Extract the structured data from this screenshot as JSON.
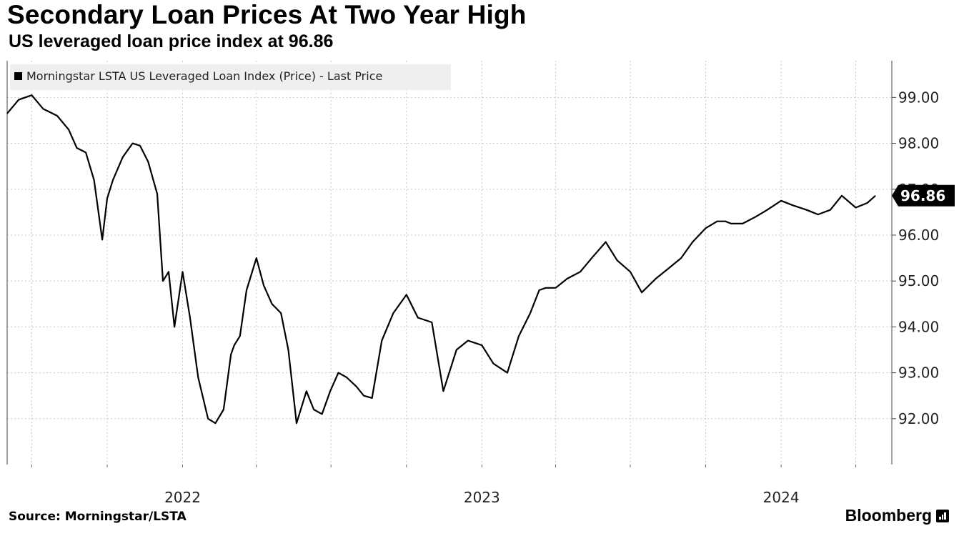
{
  "title": "Secondary Loan Prices At Two Year High",
  "subtitle": "US leveraged loan price index at 96.86",
  "source": "Source: Morningstar/LSTA",
  "brand": "Bloomberg",
  "chart_data": {
    "type": "line",
    "series": [
      {
        "name": "Morningstar LSTA US Leveraged Loan Index (Price) - Last Price",
        "color": "#000000",
        "x": [
          "2021-06-01",
          "2021-06-15",
          "2021-07-01",
          "2021-07-15",
          "2021-08-01",
          "2021-08-15",
          "2021-08-25",
          "2021-09-05",
          "2021-09-15",
          "2021-09-25",
          "2021-10-01",
          "2021-10-08",
          "2021-10-20",
          "2021-11-01",
          "2021-11-10",
          "2021-11-20",
          "2021-12-01",
          "2021-12-08",
          "2021-12-15",
          "2021-12-22",
          "2022-01-01",
          "2022-01-10",
          "2022-01-20",
          "2022-02-01",
          "2022-02-10",
          "2022-02-20",
          "2022-03-01",
          "2022-03-05",
          "2022-03-12",
          "2022-03-20",
          "2022-04-01",
          "2022-04-10",
          "2022-04-20",
          "2022-05-01",
          "2022-05-10",
          "2022-05-20",
          "2022-06-01",
          "2022-06-10",
          "2022-06-20",
          "2022-06-30",
          "2022-07-10",
          "2022-07-20",
          "2022-08-01",
          "2022-08-10",
          "2022-08-20",
          "2022-09-01",
          "2022-09-15",
          "2022-10-01",
          "2022-10-15",
          "2022-11-01",
          "2022-11-15",
          "2022-12-01",
          "2022-12-15",
          "2023-01-01",
          "2023-01-15",
          "2023-02-01",
          "2023-02-15",
          "2023-03-01",
          "2023-03-12",
          "2023-03-20",
          "2023-04-01",
          "2023-04-15",
          "2023-05-01",
          "2023-05-15",
          "2023-06-01",
          "2023-06-15",
          "2023-07-01",
          "2023-07-15",
          "2023-08-01",
          "2023-08-15",
          "2023-09-01",
          "2023-09-15",
          "2023-10-01",
          "2023-10-15",
          "2023-10-25",
          "2023-11-01",
          "2023-11-15",
          "2023-12-01",
          "2023-12-15",
          "2024-01-01",
          "2024-01-15",
          "2024-02-01",
          "2024-02-15",
          "2024-03-01",
          "2024-03-15",
          "2024-04-01",
          "2024-04-15",
          "2024-04-25"
        ],
        "values": [
          98.65,
          98.95,
          99.05,
          98.75,
          98.6,
          98.3,
          97.9,
          97.8,
          97.2,
          95.9,
          96.8,
          97.2,
          97.7,
          98.0,
          97.95,
          97.6,
          96.9,
          95.0,
          95.2,
          94.0,
          95.2,
          94.2,
          92.9,
          92.0,
          91.9,
          92.2,
          93.4,
          93.6,
          93.8,
          94.8,
          95.5,
          94.9,
          94.5,
          94.3,
          93.5,
          91.9,
          92.6,
          92.2,
          92.1,
          92.6,
          93.0,
          92.9,
          92.7,
          92.5,
          92.45,
          93.7,
          94.3,
          94.7,
          94.2,
          94.1,
          92.6,
          93.5,
          93.7,
          93.6,
          93.2,
          93.0,
          93.8,
          94.3,
          94.8,
          94.85,
          94.85,
          95.05,
          95.2,
          95.5,
          95.85,
          95.45,
          95.2,
          94.75,
          95.05,
          95.25,
          95.5,
          95.85,
          96.15,
          96.3,
          96.3,
          96.25,
          96.25,
          96.4,
          96.55,
          96.75,
          96.65,
          96.55,
          96.45,
          96.55,
          96.86,
          96.6,
          96.7,
          96.86
        ]
      }
    ],
    "x_tick_labels": [
      "2022",
      "2023",
      "2024"
    ],
    "y_ticks": [
      92.0,
      93.0,
      94.0,
      95.0,
      96.0,
      97.0,
      98.0,
      99.0
    ],
    "y_tick_labels": [
      "92.00",
      "93.00",
      "94.00",
      "95.00",
      "96.00",
      "97.00",
      "98.00",
      "99.00"
    ],
    "ylim": [
      91.0,
      99.8
    ],
    "xlim": [
      "2021-06-01",
      "2024-05-15"
    ],
    "last_value_label": "96.86",
    "legend_label": "Morningstar LSTA US Leveraged Loan Index (Price) - Last Price",
    "legend_position": "top-left",
    "grid": true,
    "y_axis_side": "right"
  }
}
